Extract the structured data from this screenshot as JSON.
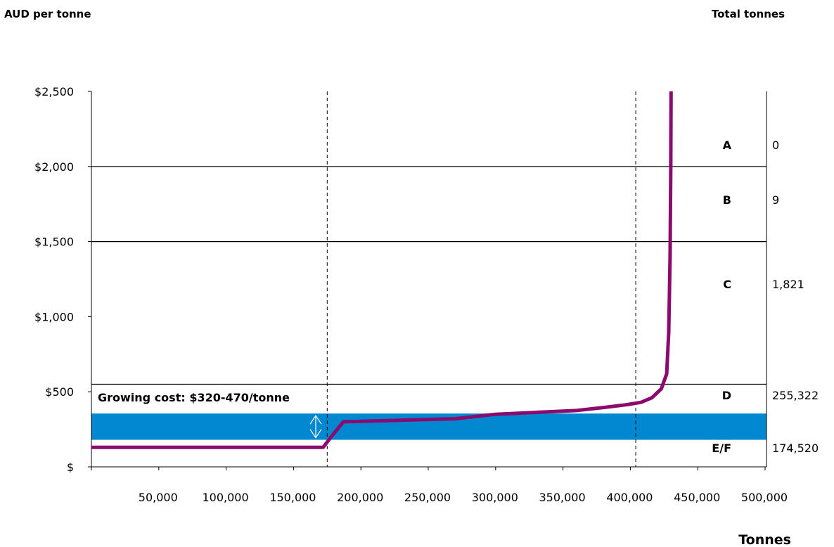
{
  "chart_data": {
    "type": "line",
    "ylabel": "AUD per tonne",
    "xlabel": "Tonnes",
    "right_axis_title": "Total tonnes",
    "xlim": [
      0,
      500000
    ],
    "ylim": [
      0,
      2500
    ],
    "x_ticks": [
      50000,
      100000,
      150000,
      200000,
      250000,
      300000,
      350000,
      400000,
      450000,
      500000
    ],
    "x_tick_labels": [
      "50,000",
      "100,000",
      "150,000",
      "200,000",
      "250,000",
      "300,000",
      "350,000",
      "400,000",
      "450,000",
      "500,000"
    ],
    "y_ticks": [
      0,
      500,
      1000,
      1500,
      2000,
      2500
    ],
    "y_tick_labels": [
      "$",
      "$500",
      "$1,000",
      "$1,500",
      "$2,000",
      "$2,500"
    ],
    "series": [
      {
        "color": "#8b0a6d",
        "x": [
          0,
          172000,
          178000,
          187000,
          270000,
          300000,
          360000,
          380000,
          398000,
          408000,
          416000,
          423000,
          427000,
          428500,
          429500,
          430000,
          430200
        ],
        "y": [
          130,
          130,
          200,
          300,
          320,
          350,
          375,
          395,
          415,
          430,
          460,
          520,
          620,
          900,
          1400,
          2000,
          2500
        ]
      }
    ],
    "vertical_reference_lines": [
      175000,
      404000
    ],
    "band_boundaries": [
      2000,
      1500,
      550
    ],
    "growing_cost_band": {
      "from": 180,
      "to": 355,
      "color": "#0288d1",
      "label": "Growing cost: $320-470/tonne"
    },
    "bands": [
      {
        "label": "A",
        "total": "0"
      },
      {
        "label": "B",
        "total": "9"
      },
      {
        "label": "C",
        "total": "1,821"
      },
      {
        "label": "D",
        "total": "255,322"
      },
      {
        "label": "E/F",
        "total": "174,520"
      }
    ],
    "grid": false,
    "legend": "none"
  }
}
